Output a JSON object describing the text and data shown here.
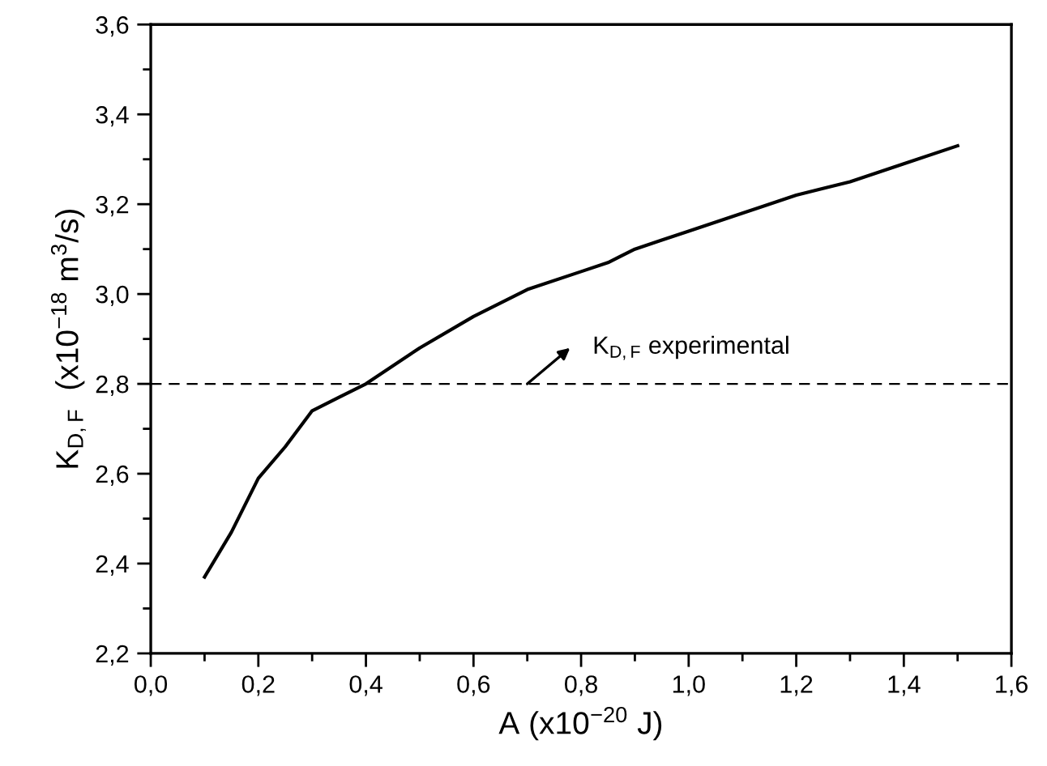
{
  "chart_data": {
    "type": "line",
    "xlabel": "A (x10$^{−20}$ J)",
    "ylabel": "K$_{D,F}$  (x10$^{−18}$ m$^{3}$/s)",
    "x": [
      0.1,
      0.15,
      0.2,
      0.25,
      0.3,
      0.35,
      0.4,
      0.5,
      0.6,
      0.7,
      0.8,
      0.85,
      0.9,
      0.95,
      1.0,
      1.1,
      1.2,
      1.3,
      1.4,
      1.5
    ],
    "series": [
      {
        "color": "#000000",
        "values": [
          2.37,
          2.47,
          2.59,
          2.66,
          2.74,
          2.77,
          2.8,
          2.88,
          2.95,
          3.01,
          3.05,
          3.07,
          3.1,
          3.12,
          3.14,
          3.18,
          3.22,
          3.25,
          3.29,
          3.33
        ]
      }
    ],
    "xlim": [
      0.0,
      1.6
    ],
    "ylim": [
      2.2,
      3.6
    ],
    "xticks": [
      {
        "value": 0.0,
        "label": "0,0"
      },
      {
        "value": 0.2,
        "label": "0,2"
      },
      {
        "value": 0.4,
        "label": "0,4"
      },
      {
        "value": 0.6,
        "label": "0,6"
      },
      {
        "value": 0.8,
        "label": "0,8"
      },
      {
        "value": 1.0,
        "label": "1,0"
      },
      {
        "value": 1.2,
        "label": "1,2"
      },
      {
        "value": 1.4,
        "label": "1,4"
      },
      {
        "value": 1.6,
        "label": "1,6"
      }
    ],
    "yticks": [
      {
        "value": 2.2,
        "label": "2,2"
      },
      {
        "value": 2.4,
        "label": "2,4"
      },
      {
        "value": 2.6,
        "label": "2,6"
      },
      {
        "value": 2.8,
        "label": "2,8"
      },
      {
        "value": 3.0,
        "label": "3,0"
      },
      {
        "value": 3.2,
        "label": "3,2"
      },
      {
        "value": 3.4,
        "label": "3,4"
      },
      {
        "value": 3.6,
        "label": "3,6"
      }
    ],
    "ref_lines": [
      {
        "axis": "y",
        "value": 2.8,
        "line_style": "dashed",
        "color": "#000000"
      }
    ],
    "annotations": [
      "K$_{D,F}$ experimental"
    ],
    "grid": false,
    "legend": false,
    "marker": "none",
    "line_style": "solid"
  }
}
